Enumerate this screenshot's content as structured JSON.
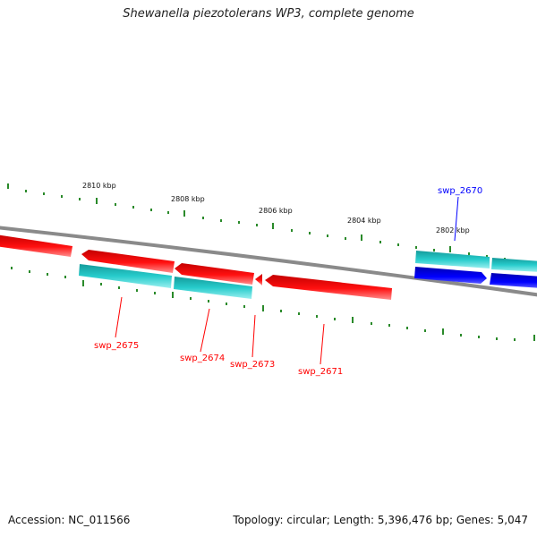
{
  "header": {
    "title": "Shewanella piezotolerans WP3, complete genome"
  },
  "footer": {
    "accession": "Accession: NC_011566",
    "summary": "Topology: circular; Length: 5,396,476 bp; Genes: 5,047"
  },
  "scale": {
    "labels": [
      "2810 kbp",
      "2808 kbp",
      "2806 kbp",
      "2804 kbp",
      "2802 kbp"
    ]
  },
  "genes": [
    {
      "name": "swp_2675",
      "color": "#ff0000"
    },
    {
      "name": "swp_2674",
      "color": "#ff0000"
    },
    {
      "name": "swp_2673",
      "color": "#ff0000"
    },
    {
      "name": "swp_2671",
      "color": "#ff0000"
    },
    {
      "name": "swp_2670",
      "color": "#0000ff"
    }
  ],
  "colors": {
    "forward_cds": "#ff0000",
    "reverse_cds": "#0000ff",
    "other_feature": "#20c8c8",
    "backbone": "#808080",
    "ticks": "#2a8a2a"
  }
}
